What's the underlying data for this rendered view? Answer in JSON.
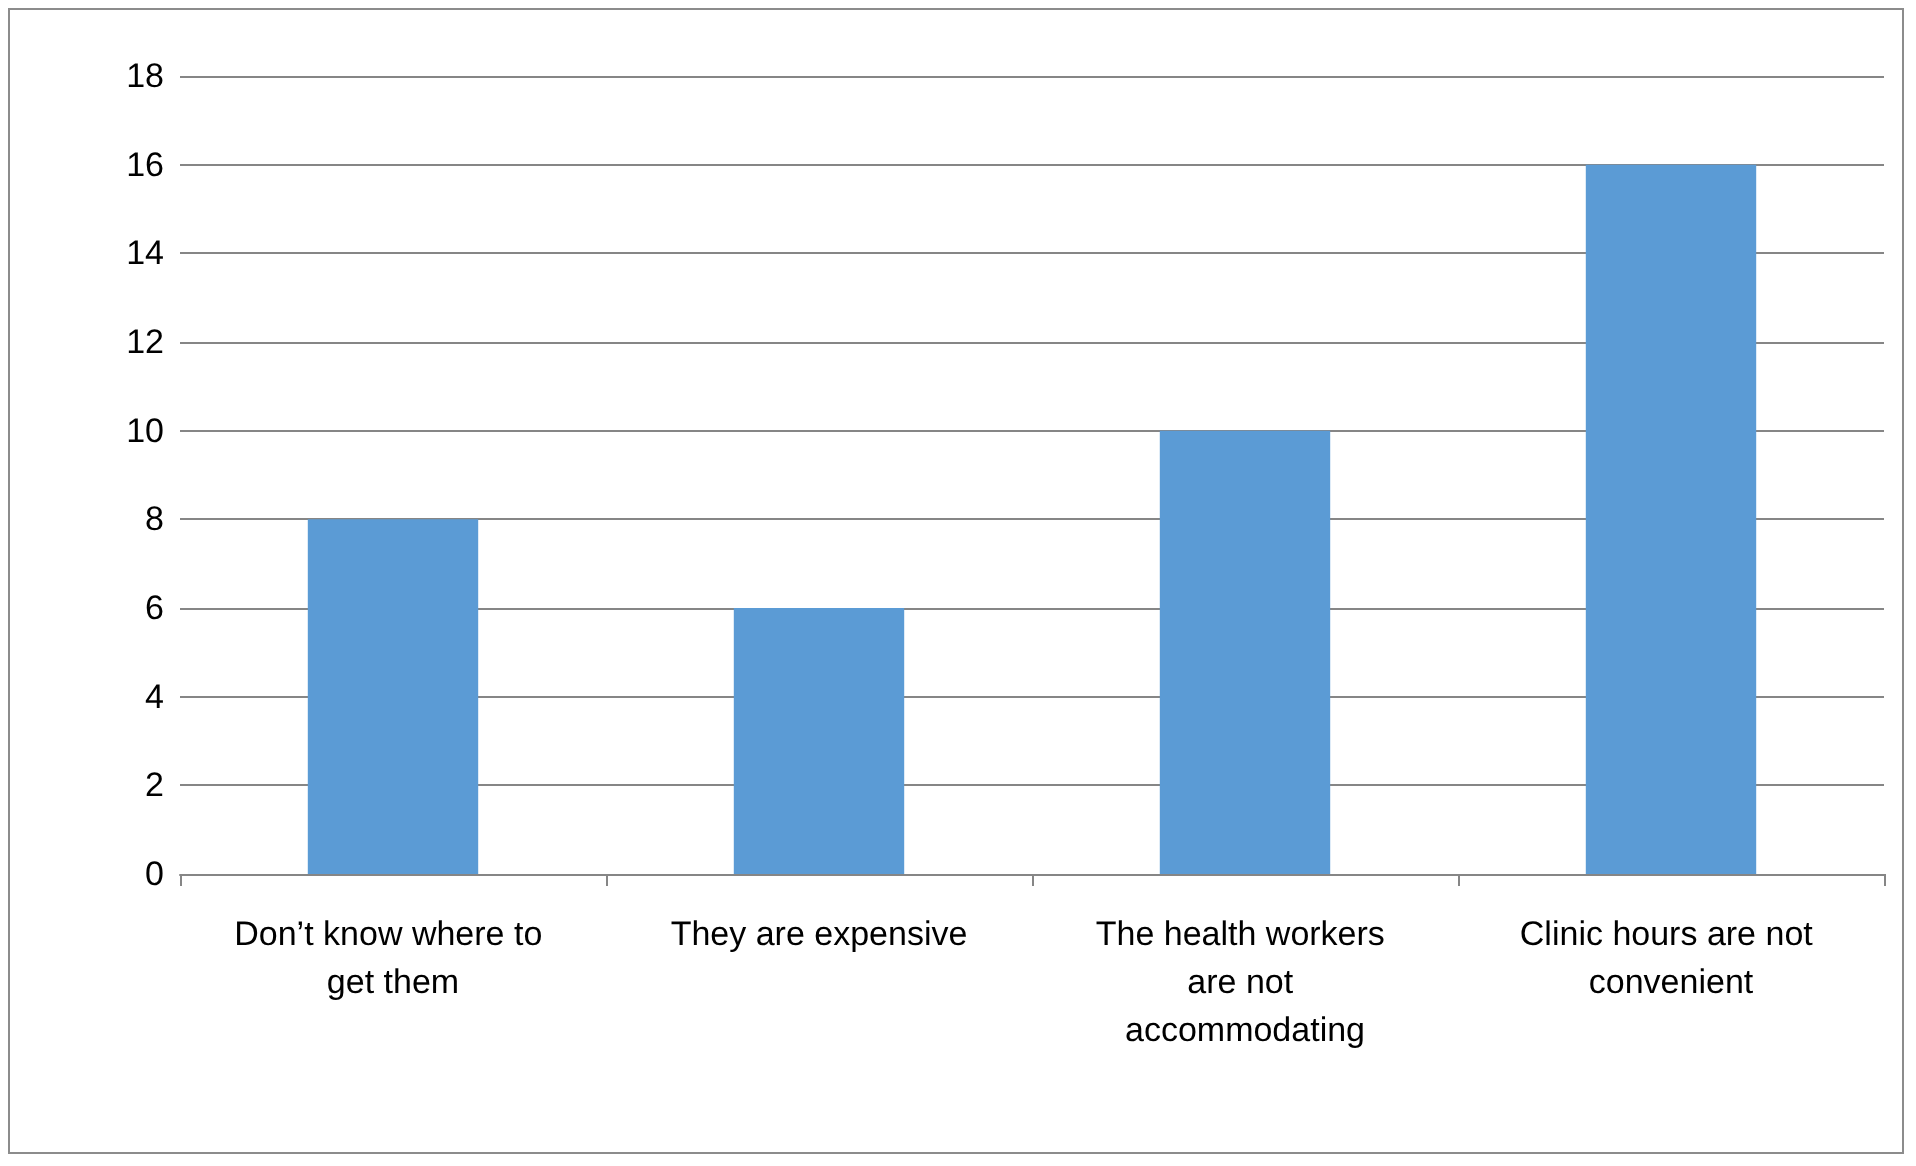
{
  "chart_data": {
    "type": "bar",
    "categories": [
      "Don’t know where to get them",
      "They are expensive",
      "The health workers are not accommodating",
      "Clinic hours are not convenient"
    ],
    "values": [
      8,
      6,
      10,
      16
    ],
    "color": "#5b9bd5",
    "ylim": [
      0,
      18
    ],
    "yticks": [
      0,
      2,
      4,
      6,
      8,
      10,
      12,
      14,
      16,
      18
    ],
    "grid": "y"
  }
}
